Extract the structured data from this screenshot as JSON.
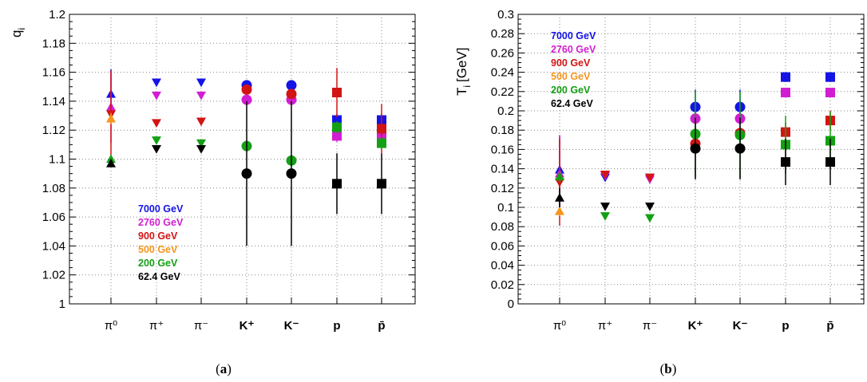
{
  "figure": {
    "caption_a_open": "(",
    "caption_a_letter": "a",
    "caption_a_close": ")",
    "caption_b_open": "(",
    "caption_b_letter": "b",
    "caption_b_close": ")"
  },
  "colors": {
    "7000 GeV": "#1414e6",
    "2760 GeV": "#d21ed2",
    "900 GeV": "#d21414",
    "500 GeV": "#f5961e",
    "200 GeV": "#14a014",
    "62.4 GeV": "#000000"
  },
  "chart_data": [
    {
      "type": "scatter",
      "panel": "a",
      "ylabel_main": "q",
      "ylabel_sub": "i",
      "ylim": [
        1.0,
        1.2
      ],
      "yticks": [
        "1",
        "1.02",
        "1.04",
        "1.06",
        "1.08",
        "1.1",
        "1.12",
        "1.14",
        "1.16",
        "1.18",
        "1.2"
      ],
      "categories": [
        "π⁰",
        "π⁺",
        "π⁻",
        "K⁺",
        "K⁻",
        "p",
        "p̄"
      ],
      "grid": true,
      "legend_position": "lower-left",
      "series": [
        {
          "name": "7000 GeV",
          "values": [
            1.145,
            1.153,
            1.153,
            1.151,
            1.151,
            1.127,
            1.127
          ],
          "errors": [
            0.017,
            0,
            0,
            0,
            0,
            0.004,
            0.004
          ]
        },
        {
          "name": "2760 GeV",
          "values": [
            1.136,
            1.144,
            1.144,
            1.141,
            1.141,
            1.116,
            1.116
          ],
          "errors": [
            0.025,
            0,
            0,
            0,
            0,
            0.004,
            0.004
          ]
        },
        {
          "name": "900 GeV",
          "values": [
            1.131,
            1.125,
            1.126,
            1.148,
            1.145,
            1.146,
            1.121
          ],
          "errors": [
            0.03,
            0,
            0,
            0,
            0,
            0.017,
            0.017
          ]
        },
        {
          "name": "500 GeV",
          "values": [
            1.128,
            null,
            null,
            null,
            null,
            null,
            null
          ],
          "errors": [
            0.004,
            0,
            0,
            0,
            0,
            0,
            0
          ]
        },
        {
          "name": "200 GeV",
          "values": [
            1.1,
            1.113,
            1.111,
            1.109,
            1.099,
            1.122,
            1.111
          ],
          "errors": [
            0.001,
            0,
            0,
            0,
            0,
            0.004,
            0.004
          ]
        },
        {
          "name": "62.4 GeV",
          "values": [
            1.097,
            1.107,
            1.107,
            1.09,
            1.09,
            1.083,
            1.083
          ],
          "errors": [
            0.001,
            0,
            0,
            0.05,
            0.05,
            0.021,
            0.021
          ]
        }
      ]
    },
    {
      "type": "scatter",
      "panel": "b",
      "ylabel_main": "T",
      "ylabel_sub": "i",
      "ylabel_unit": "[GeV]",
      "ylim": [
        0,
        0.3
      ],
      "yticks": [
        "0",
        "0.02",
        "0.04",
        "0.06",
        "0.08",
        "0.1",
        "0.12",
        "0.14",
        "0.16",
        "0.18",
        "0.2",
        "0.22",
        "0.24",
        "0.26",
        "0.28",
        "0.3"
      ],
      "categories": [
        "π⁰",
        "π⁺",
        "π⁻",
        "K⁺",
        "K⁻",
        "p",
        "p̄"
      ],
      "grid": true,
      "legend_position": "top-left",
      "series": [
        {
          "name": "7000 GeV",
          "values": [
            0.139,
            0.131,
            0.131,
            0.204,
            0.204,
            0.235,
            0.235
          ],
          "errors": [
            0.035,
            0,
            0,
            0.018,
            0.018,
            0.005,
            0.005
          ]
        },
        {
          "name": "2760 GeV",
          "values": [
            0.135,
            0.133,
            0.129,
            0.192,
            0.192,
            0.219,
            0.219
          ],
          "errors": [
            0.04,
            0,
            0,
            0,
            0,
            0.005,
            0.005
          ]
        },
        {
          "name": "900 GeV",
          "values": [
            0.126,
            0.134,
            0.131,
            0.166,
            0.177,
            0.178,
            0.19
          ],
          "errors": [
            0.045,
            0,
            0,
            0,
            0,
            0.01,
            0.01
          ]
        },
        {
          "name": "500 GeV",
          "values": [
            0.096,
            null,
            null,
            null,
            null,
            null,
            null
          ],
          "errors": [
            0.005,
            0,
            0,
            0,
            0,
            0,
            0
          ]
        },
        {
          "name": "200 GeV",
          "values": [
            0.132,
            0.091,
            0.089,
            0.176,
            0.175,
            0.165,
            0.169
          ],
          "errors": [
            0.006,
            0,
            0,
            0.045,
            0.045,
            0.03,
            0.03
          ]
        },
        {
          "name": "62.4 GeV",
          "values": [
            0.11,
            0.101,
            0.101,
            0.161,
            0.161,
            0.147,
            0.147
          ],
          "errors": [
            0.01,
            0,
            0,
            0.032,
            0.032,
            0.024,
            0.024
          ]
        }
      ]
    }
  ]
}
